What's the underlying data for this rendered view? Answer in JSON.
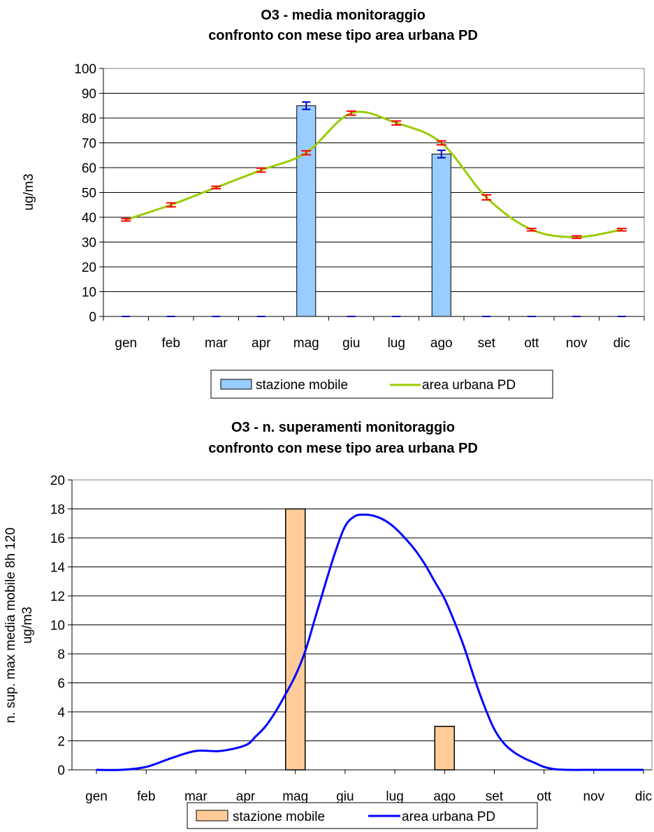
{
  "chart_data": [
    {
      "type": "bar",
      "title": "O3 - media monitoraggio",
      "subtitle": "confronto con mese tipo area urbana PD",
      "xlabel": "",
      "ylabel": "ug/m3",
      "ylim": [
        0,
        100
      ],
      "yticks": [
        0,
        10,
        20,
        30,
        40,
        50,
        60,
        70,
        80,
        90,
        100
      ],
      "grid": true,
      "legend_position": "bottom",
      "categories": [
        "gen",
        "feb",
        "mar",
        "apr",
        "mag",
        "giu",
        "lug",
        "ago",
        "set",
        "ott",
        "nov",
        "dic"
      ],
      "series": [
        {
          "name": "stazione mobile",
          "kind": "bar",
          "color": "#99ccff",
          "values": [
            0,
            0,
            0,
            0,
            85,
            0,
            0,
            65.5,
            0,
            0,
            0,
            0
          ],
          "error": [
            0,
            0,
            0,
            0,
            1.5,
            0,
            0,
            1.5,
            0,
            0,
            0,
            0
          ],
          "error_color": "#0000cc"
        },
        {
          "name": "area urbana PD",
          "kind": "line",
          "color": "#99cc00",
          "values": [
            39,
            45,
            52,
            59,
            66,
            82,
            78,
            70,
            48,
            35,
            32,
            35
          ],
          "error": [
            0.5,
            0.8,
            0.5,
            0.8,
            0.8,
            0.8,
            0.8,
            0.8,
            1,
            0.5,
            0.5,
            0.5
          ],
          "error_color": "#ff0000"
        }
      ]
    },
    {
      "type": "bar",
      "title": "O3 - n. superamenti monitoraggio",
      "subtitle": "confronto con mese tipo area urbana PD",
      "xlabel": "",
      "ylabel": "n. sup. max media mobile 8h 120 ug/m3",
      "ylabel_line1": "n. sup. max media mobile 8h 120",
      "ylabel_line2": "ug/m3",
      "ylim": [
        0,
        20
      ],
      "yticks": [
        0,
        2,
        4,
        6,
        8,
        10,
        12,
        14,
        16,
        18,
        20
      ],
      "grid": true,
      "legend_position": "bottom",
      "categories": [
        "gen",
        "feb",
        "mar",
        "apr",
        "mag",
        "giu",
        "lug",
        "ago",
        "set",
        "ott",
        "nov",
        "dic"
      ],
      "series": [
        {
          "name": "stazione mobile",
          "kind": "bar",
          "color": "#ffcc99",
          "values": [
            0,
            0,
            0,
            0,
            18,
            0,
            0,
            3,
            0,
            0,
            0,
            0
          ]
        },
        {
          "name": "area urbana PD",
          "kind": "line",
          "color": "#0000ff",
          "x": [
            0,
            0.5,
            1,
            1.5,
            2,
            2.5,
            3,
            3.2,
            3.4,
            3.6,
            3.8,
            4,
            4.2,
            4.4,
            4.6,
            4.8,
            5,
            5.2,
            5.4,
            5.6,
            5.8,
            6,
            6.2,
            6.4,
            6.6,
            6.8,
            7,
            7.2,
            7.4,
            7.6,
            7.8,
            8,
            8.2,
            8.4,
            8.6,
            8.8,
            9,
            9.2,
            9.5,
            10,
            10.5,
            11
          ],
          "values": [
            0,
            0,
            0.2,
            0.8,
            1.3,
            1.3,
            1.7,
            2.3,
            3.0,
            4.0,
            5.2,
            6.5,
            8.2,
            10.5,
            12.8,
            15.0,
            16.8,
            17.5,
            17.6,
            17.5,
            17.2,
            16.7,
            16.0,
            15.2,
            14.2,
            13.0,
            11.8,
            10.2,
            8.4,
            6.3,
            4.4,
            2.8,
            1.8,
            1.2,
            0.8,
            0.5,
            0.2,
            0.05,
            0,
            0,
            0,
            0
          ]
        }
      ]
    }
  ]
}
